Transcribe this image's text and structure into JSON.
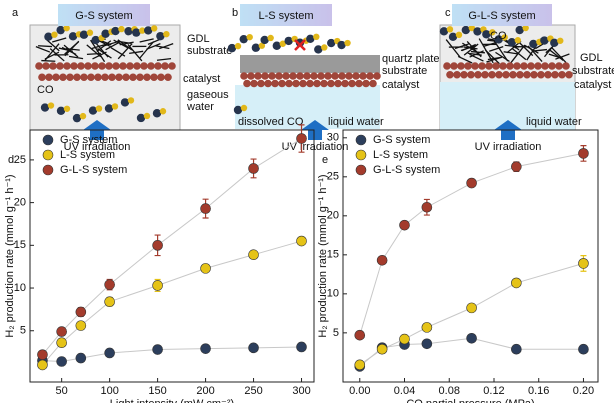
{
  "schematics": [
    {
      "letter": "a",
      "title": "G-S system",
      "labels": [
        "GDL",
        "substrate",
        "catalyst",
        "gaseous",
        "water",
        "CO"
      ],
      "caption": "UV irradiation"
    },
    {
      "letter": "b",
      "title": "L-S system",
      "labels": [
        "quartz plate",
        "substrate",
        "catalyst",
        "dissolved CO",
        "liquid water"
      ],
      "caption": "UV irradiation"
    },
    {
      "letter": "c",
      "title": "G-L-S system",
      "labels": [
        "CO",
        "GDL",
        "substrate",
        "catalyst",
        "liquid water"
      ],
      "caption": "UV irradiation"
    }
  ],
  "chart_data": [
    {
      "type": "scatter",
      "panel": "d",
      "xlabel": "Light intensity (mW cm⁻²)",
      "ylabel": "H₂ production rate (mmol g⁻¹ h⁻¹)",
      "x": [
        30,
        50,
        70,
        100,
        150,
        200,
        250,
        300
      ],
      "xlim": [
        17,
        313
      ],
      "xticks": [
        50,
        100,
        150,
        200,
        250,
        300
      ],
      "ylim": [
        -1,
        28.5
      ],
      "yticks": [
        5,
        10,
        15,
        20,
        25
      ],
      "legend": "upper left",
      "series": [
        {
          "name": "G-S system",
          "color": "#2c3e5c",
          "values": [
            1.5,
            1.4,
            1.8,
            2.4,
            2.8,
            2.9,
            3.0,
            3.1
          ]
        },
        {
          "name": "L-S system",
          "color": "#e5c317",
          "values": [
            1.0,
            3.6,
            5.6,
            8.4,
            10.3,
            12.3,
            13.9,
            15.5
          ],
          "errors": [
            0.2,
            0.3,
            0.4,
            0.5,
            0.7,
            0.3,
            0.3,
            0.3
          ]
        },
        {
          "name": "G-L-S system",
          "color": "#a33b2c",
          "values": [
            2.2,
            4.9,
            7.2,
            10.4,
            15.0,
            19.3,
            24.0,
            27.5
          ],
          "errors": [
            0.3,
            0.4,
            0.5,
            0.6,
            1.2,
            1.1,
            1.1,
            1.6
          ]
        }
      ]
    },
    {
      "type": "scatter",
      "panel": "e",
      "xlabel": "CO partial pressure (MPa)",
      "ylabel": "H₂ production rate (mmol g⁻¹ h⁻¹)",
      "x": [
        0,
        0.02,
        0.04,
        0.06,
        0.1,
        0.14,
        0.2
      ],
      "xlim": [
        -0.015,
        0.213
      ],
      "xticks": [
        {
          "value": 0,
          "label": "0.00"
        },
        {
          "value": 0.04,
          "label": "0.04"
        },
        {
          "value": 0.08,
          "label": "0.08"
        },
        {
          "value": 0.12,
          "label": "0.12"
        },
        {
          "value": 0.16,
          "label": "0.16"
        },
        {
          "value": 0.2,
          "label": "0.20"
        }
      ],
      "ylim": [
        -1.3,
        31
      ],
      "yticks": [
        5,
        10,
        15,
        20,
        25,
        30
      ],
      "legend": "upper left",
      "series": [
        {
          "name": "G-S system",
          "color": "#2c3e5c",
          "values": [
            0.7,
            3.1,
            3.5,
            3.6,
            4.3,
            2.9,
            2.9
          ]
        },
        {
          "name": "L-S system",
          "color": "#e5c317",
          "values": [
            0.9,
            2.9,
            4.2,
            5.7,
            8.2,
            11.4,
            13.9
          ],
          "errors": [
            0.3,
            0.3,
            0.3,
            0.3,
            0.3,
            0.4,
            1.0
          ]
        },
        {
          "name": "G-L-S system",
          "color": "#a33b2c",
          "values": [
            4.7,
            14.3,
            18.8,
            21.1,
            24.2,
            26.3,
            28.0
          ],
          "errors": [
            0.3,
            0.3,
            0.3,
            1.0,
            0.5,
            0.6,
            1.0
          ]
        }
      ]
    }
  ]
}
